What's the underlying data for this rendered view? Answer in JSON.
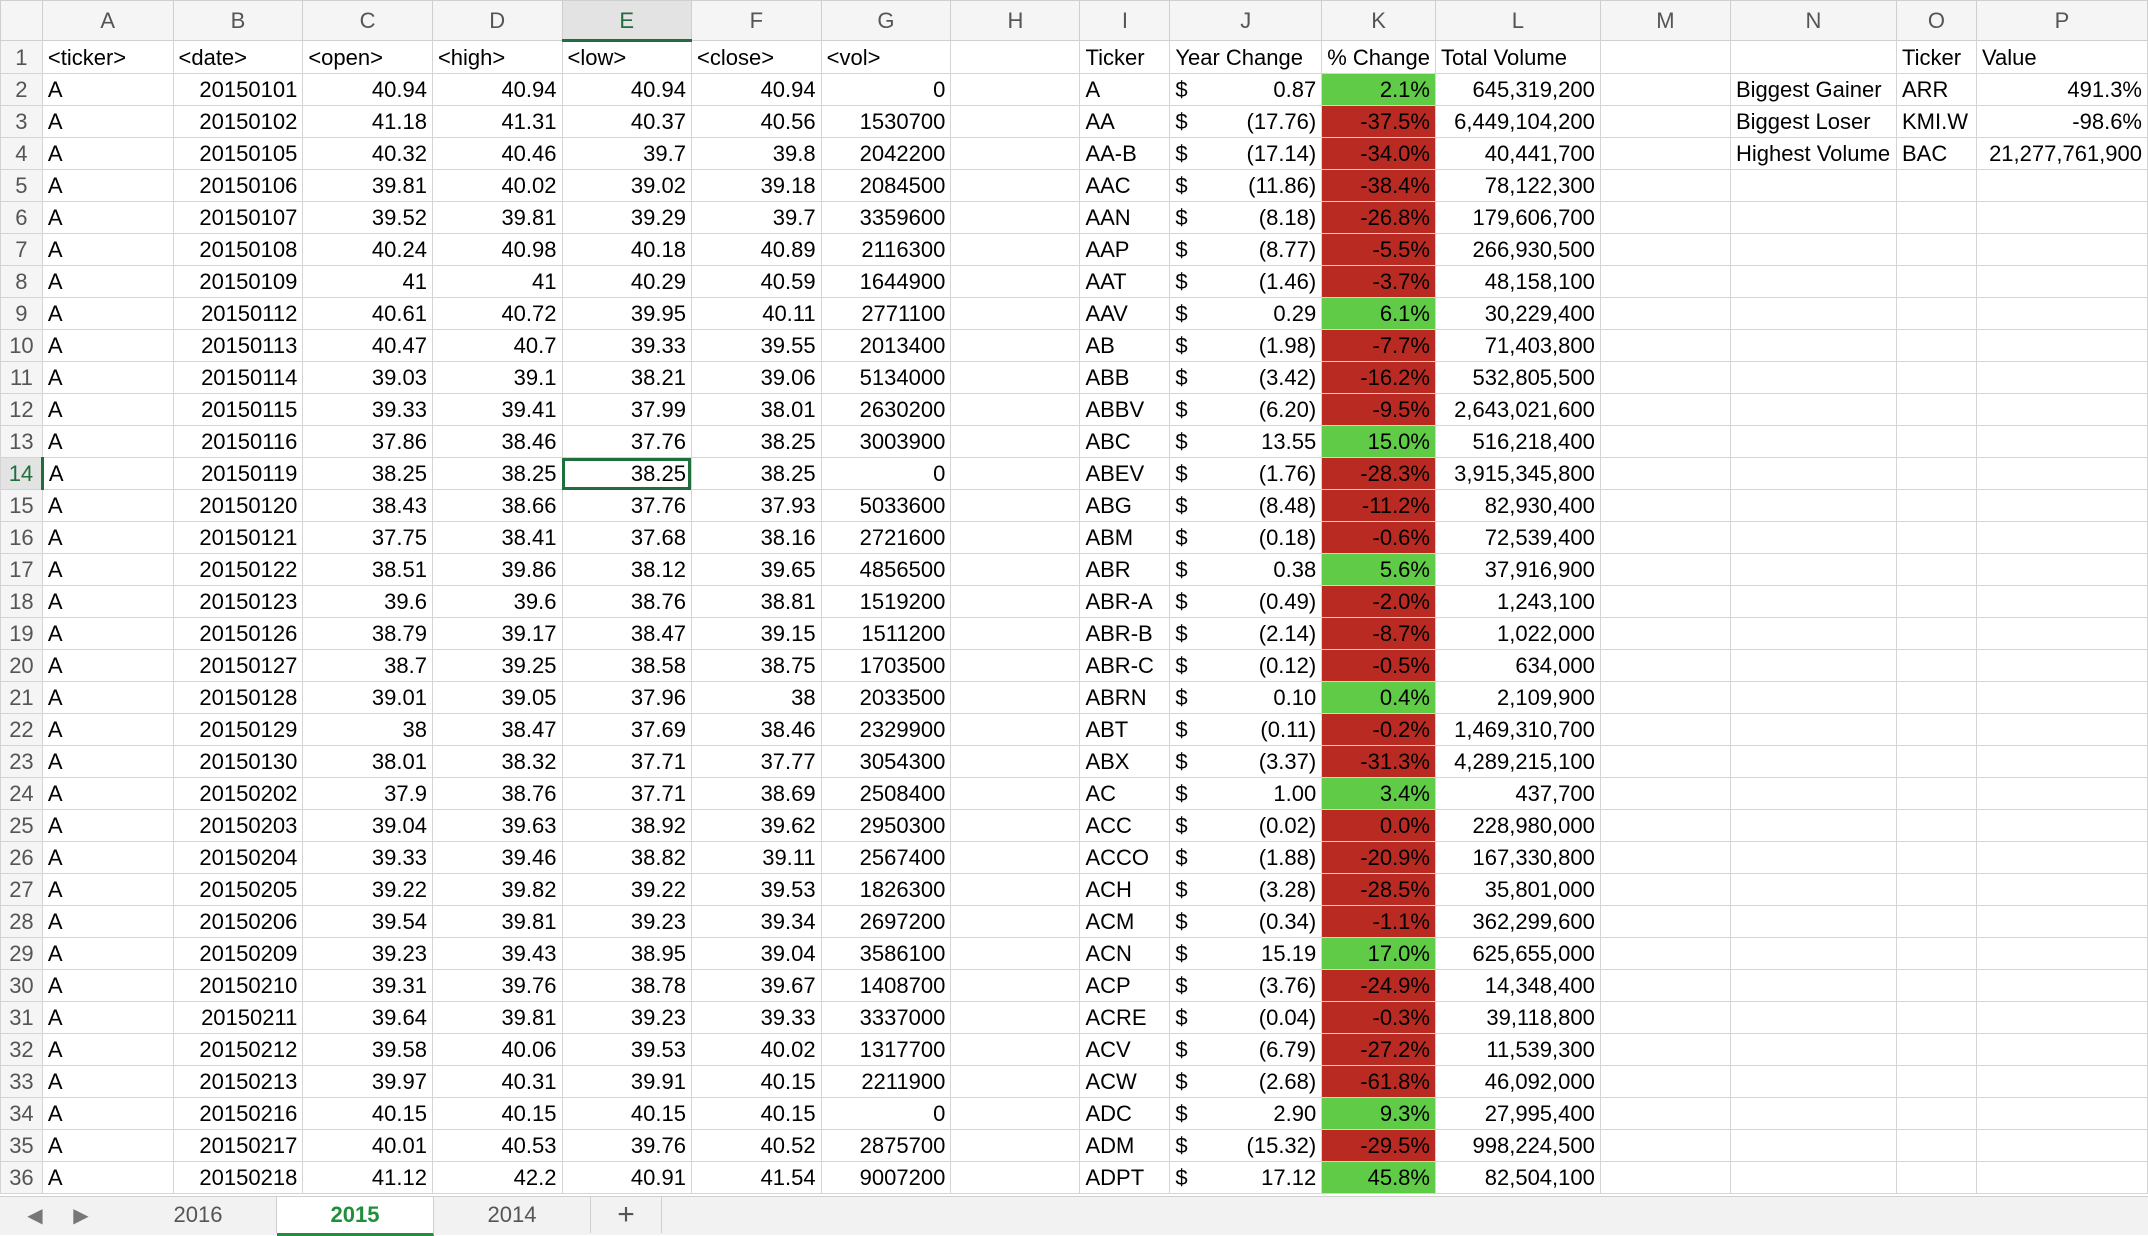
{
  "columns": [
    "A",
    "B",
    "C",
    "D",
    "E",
    "F",
    "G",
    "H",
    "I",
    "J",
    "K",
    "L",
    "M",
    "N",
    "O",
    "P"
  ],
  "selected_column": "E",
  "selected_row": 14,
  "header_row": {
    "A": "<ticker>",
    "B": "<date>",
    "C": "<open>",
    "D": "<high>",
    "E": "<low>",
    "F": "<close>",
    "G": "<vol>",
    "H": "",
    "I": "Ticker",
    "J": "Year Change",
    "K": "% Change",
    "L": "Total Volume",
    "M": "",
    "N": "",
    "O": "Ticker",
    "P": "Value"
  },
  "raw_rows": [
    [
      "A",
      "20150101",
      "40.94",
      "40.94",
      "40.94",
      "40.94",
      "0"
    ],
    [
      "A",
      "20150102",
      "41.18",
      "41.31",
      "40.37",
      "40.56",
      "1530700"
    ],
    [
      "A",
      "20150105",
      "40.32",
      "40.46",
      "39.7",
      "39.8",
      "2042200"
    ],
    [
      "A",
      "20150106",
      "39.81",
      "40.02",
      "39.02",
      "39.18",
      "2084500"
    ],
    [
      "A",
      "20150107",
      "39.52",
      "39.81",
      "39.29",
      "39.7",
      "3359600"
    ],
    [
      "A",
      "20150108",
      "40.24",
      "40.98",
      "40.18",
      "40.89",
      "2116300"
    ],
    [
      "A",
      "20150109",
      "41",
      "41",
      "40.29",
      "40.59",
      "1644900"
    ],
    [
      "A",
      "20150112",
      "40.61",
      "40.72",
      "39.95",
      "40.11",
      "2771100"
    ],
    [
      "A",
      "20150113",
      "40.47",
      "40.7",
      "39.33",
      "39.55",
      "2013400"
    ],
    [
      "A",
      "20150114",
      "39.03",
      "39.1",
      "38.21",
      "39.06",
      "5134000"
    ],
    [
      "A",
      "20150115",
      "39.33",
      "39.41",
      "37.99",
      "38.01",
      "2630200"
    ],
    [
      "A",
      "20150116",
      "37.86",
      "38.46",
      "37.76",
      "38.25",
      "3003900"
    ],
    [
      "A",
      "20150119",
      "38.25",
      "38.25",
      "38.25",
      "38.25",
      "0"
    ],
    [
      "A",
      "20150120",
      "38.43",
      "38.66",
      "37.76",
      "37.93",
      "5033600"
    ],
    [
      "A",
      "20150121",
      "37.75",
      "38.41",
      "37.68",
      "38.16",
      "2721600"
    ],
    [
      "A",
      "20150122",
      "38.51",
      "39.86",
      "38.12",
      "39.65",
      "4856500"
    ],
    [
      "A",
      "20150123",
      "39.6",
      "39.6",
      "38.76",
      "38.81",
      "1519200"
    ],
    [
      "A",
      "20150126",
      "38.79",
      "39.17",
      "38.47",
      "39.15",
      "1511200"
    ],
    [
      "A",
      "20150127",
      "38.7",
      "39.25",
      "38.58",
      "38.75",
      "1703500"
    ],
    [
      "A",
      "20150128",
      "39.01",
      "39.05",
      "37.96",
      "38",
      "2033500"
    ],
    [
      "A",
      "20150129",
      "38",
      "38.47",
      "37.69",
      "38.46",
      "2329900"
    ],
    [
      "A",
      "20150130",
      "38.01",
      "38.32",
      "37.71",
      "37.77",
      "3054300"
    ],
    [
      "A",
      "20150202",
      "37.9",
      "38.76",
      "37.71",
      "38.69",
      "2508400"
    ],
    [
      "A",
      "20150203",
      "39.04",
      "39.63",
      "38.92",
      "39.62",
      "2950300"
    ],
    [
      "A",
      "20150204",
      "39.33",
      "39.46",
      "38.82",
      "39.11",
      "2567400"
    ],
    [
      "A",
      "20150205",
      "39.22",
      "39.82",
      "39.22",
      "39.53",
      "1826300"
    ],
    [
      "A",
      "20150206",
      "39.54",
      "39.81",
      "39.23",
      "39.34",
      "2697200"
    ],
    [
      "A",
      "20150209",
      "39.23",
      "39.43",
      "38.95",
      "39.04",
      "3586100"
    ],
    [
      "A",
      "20150210",
      "39.31",
      "39.76",
      "38.78",
      "39.67",
      "1408700"
    ],
    [
      "A",
      "20150211",
      "39.64",
      "39.81",
      "39.23",
      "39.33",
      "3337000"
    ],
    [
      "A",
      "20150212",
      "39.58",
      "40.06",
      "39.53",
      "40.02",
      "1317700"
    ],
    [
      "A",
      "20150213",
      "39.97",
      "40.31",
      "39.91",
      "40.15",
      "2211900"
    ],
    [
      "A",
      "20150216",
      "40.15",
      "40.15",
      "40.15",
      "40.15",
      "0"
    ],
    [
      "A",
      "20150217",
      "40.01",
      "40.53",
      "39.76",
      "40.52",
      "2875700"
    ],
    [
      "A",
      "20150218",
      "41.12",
      "42.2",
      "40.91",
      "41.54",
      "9007200"
    ]
  ],
  "summary_rows": [
    {
      "ticker": "A",
      "year_change": "0.87",
      "pct": "2.1%",
      "positive": true,
      "volume": "645,319,200"
    },
    {
      "ticker": "AA",
      "year_change": "(17.76)",
      "pct": "-37.5%",
      "positive": false,
      "volume": "6,449,104,200"
    },
    {
      "ticker": "AA-B",
      "year_change": "(17.14)",
      "pct": "-34.0%",
      "positive": false,
      "volume": "40,441,700"
    },
    {
      "ticker": "AAC",
      "year_change": "(11.86)",
      "pct": "-38.4%",
      "positive": false,
      "volume": "78,122,300"
    },
    {
      "ticker": "AAN",
      "year_change": "(8.18)",
      "pct": "-26.8%",
      "positive": false,
      "volume": "179,606,700"
    },
    {
      "ticker": "AAP",
      "year_change": "(8.77)",
      "pct": "-5.5%",
      "positive": false,
      "volume": "266,930,500"
    },
    {
      "ticker": "AAT",
      "year_change": "(1.46)",
      "pct": "-3.7%",
      "positive": false,
      "volume": "48,158,100"
    },
    {
      "ticker": "AAV",
      "year_change": "0.29",
      "pct": "6.1%",
      "positive": true,
      "volume": "30,229,400"
    },
    {
      "ticker": "AB",
      "year_change": "(1.98)",
      "pct": "-7.7%",
      "positive": false,
      "volume": "71,403,800"
    },
    {
      "ticker": "ABB",
      "year_change": "(3.42)",
      "pct": "-16.2%",
      "positive": false,
      "volume": "532,805,500"
    },
    {
      "ticker": "ABBV",
      "year_change": "(6.20)",
      "pct": "-9.5%",
      "positive": false,
      "volume": "2,643,021,600"
    },
    {
      "ticker": "ABC",
      "year_change": "13.55",
      "pct": "15.0%",
      "positive": true,
      "volume": "516,218,400"
    },
    {
      "ticker": "ABEV",
      "year_change": "(1.76)",
      "pct": "-28.3%",
      "positive": false,
      "volume": "3,915,345,800"
    },
    {
      "ticker": "ABG",
      "year_change": "(8.48)",
      "pct": "-11.2%",
      "positive": false,
      "volume": "82,930,400"
    },
    {
      "ticker": "ABM",
      "year_change": "(0.18)",
      "pct": "-0.6%",
      "positive": false,
      "volume": "72,539,400"
    },
    {
      "ticker": "ABR",
      "year_change": "0.38",
      "pct": "5.6%",
      "positive": true,
      "volume": "37,916,900"
    },
    {
      "ticker": "ABR-A",
      "year_change": "(0.49)",
      "pct": "-2.0%",
      "positive": false,
      "volume": "1,243,100"
    },
    {
      "ticker": "ABR-B",
      "year_change": "(2.14)",
      "pct": "-8.7%",
      "positive": false,
      "volume": "1,022,000"
    },
    {
      "ticker": "ABR-C",
      "year_change": "(0.12)",
      "pct": "-0.5%",
      "positive": false,
      "volume": "634,000"
    },
    {
      "ticker": "ABRN",
      "year_change": "0.10",
      "pct": "0.4%",
      "positive": true,
      "volume": "2,109,900"
    },
    {
      "ticker": "ABT",
      "year_change": "(0.11)",
      "pct": "-0.2%",
      "positive": false,
      "volume": "1,469,310,700"
    },
    {
      "ticker": "ABX",
      "year_change": "(3.37)",
      "pct": "-31.3%",
      "positive": false,
      "volume": "4,289,215,100"
    },
    {
      "ticker": "AC",
      "year_change": "1.00",
      "pct": "3.4%",
      "positive": true,
      "volume": "437,700"
    },
    {
      "ticker": "ACC",
      "year_change": "(0.02)",
      "pct": "0.0%",
      "positive": false,
      "volume": "228,980,000"
    },
    {
      "ticker": "ACCO",
      "year_change": "(1.88)",
      "pct": "-20.9%",
      "positive": false,
      "volume": "167,330,800"
    },
    {
      "ticker": "ACH",
      "year_change": "(3.28)",
      "pct": "-28.5%",
      "positive": false,
      "volume": "35,801,000"
    },
    {
      "ticker": "ACM",
      "year_change": "(0.34)",
      "pct": "-1.1%",
      "positive": false,
      "volume": "362,299,600"
    },
    {
      "ticker": "ACN",
      "year_change": "15.19",
      "pct": "17.0%",
      "positive": true,
      "volume": "625,655,000"
    },
    {
      "ticker": "ACP",
      "year_change": "(3.76)",
      "pct": "-24.9%",
      "positive": false,
      "volume": "14,348,400"
    },
    {
      "ticker": "ACRE",
      "year_change": "(0.04)",
      "pct": "-0.3%",
      "positive": false,
      "volume": "39,118,800"
    },
    {
      "ticker": "ACV",
      "year_change": "(6.79)",
      "pct": "-27.2%",
      "positive": false,
      "volume": "11,539,300"
    },
    {
      "ticker": "ACW",
      "year_change": "(2.68)",
      "pct": "-61.8%",
      "positive": false,
      "volume": "46,092,000"
    },
    {
      "ticker": "ADC",
      "year_change": "2.90",
      "pct": "9.3%",
      "positive": true,
      "volume": "27,995,400"
    },
    {
      "ticker": "ADM",
      "year_change": "(15.32)",
      "pct": "-29.5%",
      "positive": false,
      "volume": "998,224,500"
    },
    {
      "ticker": "ADPT",
      "year_change": "17.12",
      "pct": "45.8%",
      "positive": true,
      "volume": "82,504,100"
    }
  ],
  "currency_symbol": "$",
  "highlights": [
    {
      "label": "Biggest Gainer",
      "ticker": "ARR",
      "value": "491.3%"
    },
    {
      "label": "Biggest Loser",
      "ticker": "KMI.W",
      "value": "-98.6%"
    },
    {
      "label": "Highest Volume",
      "ticker": "BAC",
      "value": "21,277,761,900"
    }
  ],
  "tabs": {
    "prev_icon": "◀",
    "next_icon": "▶",
    "items": [
      {
        "label": "2016",
        "active": false
      },
      {
        "label": "2015",
        "active": true
      },
      {
        "label": "2014",
        "active": false
      }
    ],
    "add_label": "+"
  },
  "colors": {
    "positive": "#5fcb46",
    "negative": "#b92b22",
    "accent": "#1f8f3a"
  }
}
